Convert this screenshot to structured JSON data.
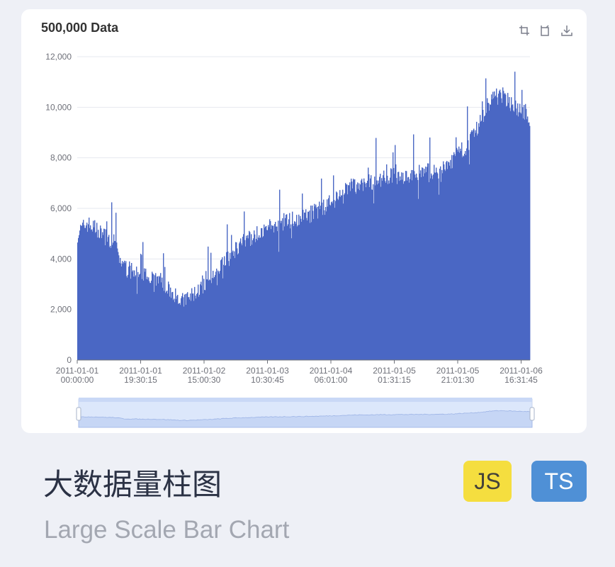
{
  "card": {
    "chart_title": "500,000 Data",
    "toolbox": [
      {
        "name": "zoom-icon",
        "label": "zoom"
      },
      {
        "name": "zoom-reset-icon",
        "label": "zoom-reset"
      },
      {
        "name": "download-icon",
        "label": "save-as-image"
      }
    ]
  },
  "chart_data": {
    "type": "bar",
    "title": "500,000 Data",
    "ylim": [
      0,
      12000
    ],
    "y_ticks": [
      "0",
      "2,000",
      "4,000",
      "6,000",
      "8,000",
      "10,000",
      "12,000"
    ],
    "x_ticks": [
      [
        "2011-01-01",
        "00:00:00"
      ],
      [
        "2011-01-01",
        "19:30:15"
      ],
      [
        "2011-01-02",
        "15:00:30"
      ],
      [
        "2011-01-03",
        "10:30:45"
      ],
      [
        "2011-01-04",
        "06:01:00"
      ],
      [
        "2011-01-05",
        "01:31:15"
      ],
      [
        "2011-01-05",
        "21:01:30"
      ],
      [
        "2011-01-06",
        "16:31:45"
      ]
    ],
    "grid": true,
    "bar_color": "#4a67c4",
    "dataZoom": {
      "start": 0,
      "end": 100
    },
    "series_envelope": [
      [
        0,
        5000
      ],
      [
        2,
        5400
      ],
      [
        4,
        5200
      ],
      [
        6,
        4900
      ],
      [
        8,
        4700
      ],
      [
        9,
        4200
      ],
      [
        10,
        3700
      ],
      [
        12,
        3500
      ],
      [
        14,
        3300
      ],
      [
        16,
        3400
      ],
      [
        18,
        3200
      ],
      [
        20,
        2900
      ],
      [
        22,
        2500
      ],
      [
        23,
        2300
      ],
      [
        25,
        2500
      ],
      [
        27,
        2800
      ],
      [
        29,
        3100
      ],
      [
        31,
        3600
      ],
      [
        33,
        4100
      ],
      [
        35,
        4400
      ],
      [
        37,
        4700
      ],
      [
        40,
        5000
      ],
      [
        43,
        5300
      ],
      [
        46,
        5500
      ],
      [
        49,
        5600
      ],
      [
        52,
        5800
      ],
      [
        55,
        6100
      ],
      [
        58,
        6500
      ],
      [
        61,
        6900
      ],
      [
        64,
        7000
      ],
      [
        67,
        7200
      ],
      [
        70,
        7300
      ],
      [
        73,
        7300
      ],
      [
        76,
        7400
      ],
      [
        79,
        7500
      ],
      [
        82,
        7700
      ],
      [
        85,
        8300
      ],
      [
        88,
        9000
      ],
      [
        91,
        10200
      ],
      [
        93,
        10600
      ],
      [
        95,
        10300
      ],
      [
        97,
        10000
      ],
      [
        99,
        9800
      ],
      [
        100,
        9600
      ]
    ]
  },
  "footer": {
    "title_cn": "大数据量柱图",
    "title_en": "Large Scale Bar Chart",
    "badge_js": "JS",
    "badge_ts": "TS"
  }
}
